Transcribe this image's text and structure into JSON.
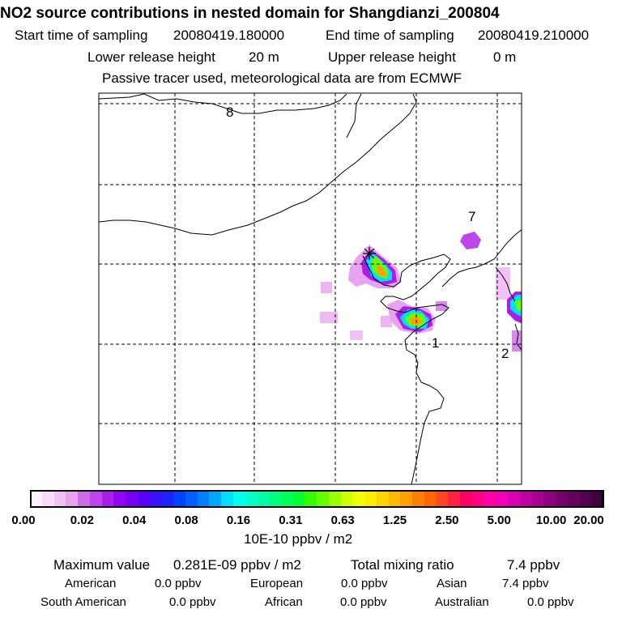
{
  "header": {
    "title": "NO2 source contributions in nested domain for Shangdianzi_200804",
    "start_label": "Start time of sampling",
    "start_value": "20080419.180000",
    "end_label": "End time of sampling",
    "end_value": "20080419.210000",
    "lower_label": "Lower release height",
    "lower_value": "20 m",
    "upper_label": "Upper release height",
    "upper_value": "0 m",
    "note": "Passive tracer used, meteorological data are from ECMWF"
  },
  "map": {
    "markers": [
      {
        "label": "8",
        "kind": "region-label"
      },
      {
        "label": "7",
        "kind": "region-label"
      },
      {
        "label": "1",
        "kind": "region-label"
      },
      {
        "label": "2",
        "kind": "region-label"
      }
    ],
    "receptor_symbol": "asterisk-icon"
  },
  "colorbar": {
    "ticks": [
      "0.00",
      "0.02",
      "0.04",
      "0.08",
      "0.16",
      "0.31",
      "0.63",
      "1.25",
      "2.50",
      "5.00",
      "10.00",
      "20.00"
    ],
    "unit": "10E-10 ppbv / m2",
    "colors": [
      "#fdf2fd",
      "#f8dcf9",
      "#f2c2f5",
      "#e8a2f0",
      "#cf6ce8",
      "#bd45ea",
      "#a91ee8",
      "#9406f0",
      "#7a00f5",
      "#5a00f8",
      "#3a10fa",
      "#2020ff",
      "#0040ff",
      "#0060ff",
      "#0080ff",
      "#00a8ff",
      "#00ddff",
      "#00ffee",
      "#00ffcc",
      "#00ffaa",
      "#00ff80",
      "#00ff55",
      "#00ff33",
      "#33ff00",
      "#66ff00",
      "#99ff00",
      "#ccff00",
      "#eeff00",
      "#ffee00",
      "#ffd500",
      "#ffbb00",
      "#ffa000",
      "#ff8000",
      "#ff6600",
      "#ff4422",
      "#ff2244",
      "#ff0066",
      "#ff0088",
      "#ff00aa",
      "#f000bb",
      "#d800b0",
      "#c000a0",
      "#a80090",
      "#900080",
      "#7a006e",
      "#66005e",
      "#520050",
      "#400040"
    ]
  },
  "summary": {
    "max_label": "Maximum value",
    "max_value": "0.281E-09 ppbv / m2",
    "total_label": "Total mixing ratio",
    "total_value": "7.4 ppbv",
    "regions": [
      {
        "name": "American",
        "value": "0.0 ppbv"
      },
      {
        "name": "European",
        "value": "0.0 ppbv"
      },
      {
        "name": "Asian",
        "value": "7.4 ppbv"
      },
      {
        "name": "South American",
        "value": "0.0 ppbv"
      },
      {
        "name": "African",
        "value": "0.0 ppbv"
      },
      {
        "name": "Australian",
        "value": "0.0 ppbv"
      }
    ]
  }
}
